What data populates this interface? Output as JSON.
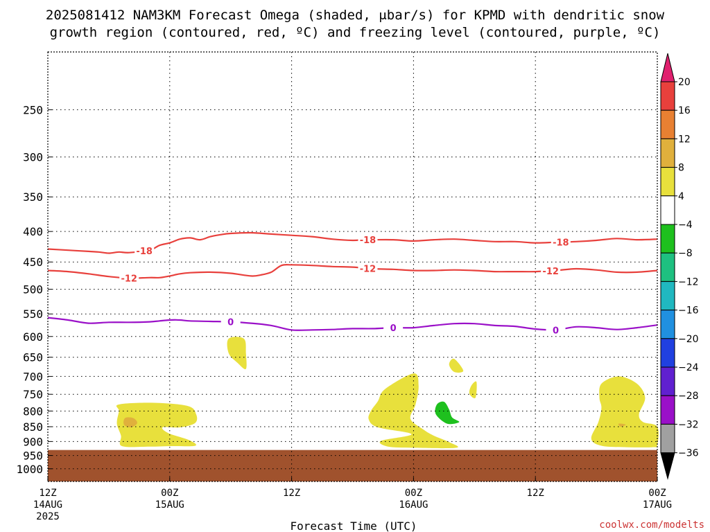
{
  "chart_data": {
    "type": "heatmap",
    "title_lines": [
      "2025081412 NAM3KM Forecast Omega (shaded, μbar/s) for KPMD with dendritic snow",
      "growth region (contoured, red, ºC) and freezing level (contoured, purple, ºC)"
    ],
    "xlabel": "Forecast Time (UTC)",
    "credit": "coolwx.com/modelts",
    "x_range_hours": [
      0,
      60
    ],
    "x_ticks": [
      {
        "hour": 0,
        "lines": [
          "12Z",
          "14AUG",
          "2025"
        ]
      },
      {
        "hour": 12,
        "lines": [
          "00Z",
          "15AUG"
        ]
      },
      {
        "hour": 24,
        "lines": [
          "12Z"
        ]
      },
      {
        "hour": 36,
        "lines": [
          "00Z",
          "16AUG"
        ]
      },
      {
        "hour": 48,
        "lines": [
          "12Z"
        ]
      },
      {
        "hour": 60,
        "lines": [
          "00Z",
          "17AUG"
        ]
      }
    ],
    "y_scale": "log-pressure",
    "y_range_hpa": [
      1050,
      200
    ],
    "y_ticks": [
      250,
      300,
      350,
      400,
      450,
      500,
      550,
      600,
      650,
      700,
      750,
      800,
      850,
      900,
      950,
      1000
    ],
    "grid": true,
    "colorbar": {
      "position": "right",
      "labels": [
        "20",
        "16",
        "12",
        "8",
        "4",
        "−4",
        "−8",
        "−12",
        "−16",
        "−20",
        "−24",
        "−28",
        "−32",
        "−36"
      ],
      "colors": [
        "#e0206e",
        "#e8403c",
        "#e88032",
        "#e0b03c",
        "#e8e03c",
        "#ffffff",
        "#1ec01e",
        "#1ec080",
        "#20b8c0",
        "#2090e0",
        "#2040e0",
        "#6020d0",
        "#9a10c8",
        "#a0a0a0",
        "#000000"
      ]
    },
    "surface_color": "#a0522d",
    "surface_hpa": 930,
    "series": [
      {
        "name": "-18",
        "color": "#e8403c",
        "label_hours": [
          9.5,
          31.5,
          50.5
        ],
        "x": [
          0,
          2,
          4,
          5,
          6,
          7,
          8,
          10,
          11,
          12,
          13,
          14,
          15,
          16,
          17,
          18,
          20,
          22,
          24,
          26,
          28,
          30,
          31,
          32,
          34,
          36,
          38,
          40,
          42,
          44,
          46,
          48,
          50,
          52,
          54,
          56,
          58,
          60
        ],
        "y": [
          428,
          430,
          432,
          433,
          435,
          433,
          434,
          430,
          422,
          418,
          412,
          410,
          413,
          408,
          405,
          403,
          402,
          404,
          406,
          408,
          412,
          414,
          413,
          413,
          413,
          415,
          413,
          412,
          414,
          416,
          416,
          418,
          417,
          416,
          414,
          411,
          413,
          412
        ]
      },
      {
        "name": "-12",
        "color": "#e8403c",
        "label_hours": [
          8,
          31.5,
          49.5
        ],
        "x": [
          0,
          2,
          4,
          6,
          8,
          10,
          11,
          12,
          13,
          14,
          16,
          18,
          20,
          21,
          22,
          23,
          24,
          26,
          28,
          30,
          32,
          34,
          36,
          38,
          40,
          42,
          44,
          46,
          48,
          50,
          52,
          54,
          56,
          58,
          60
        ],
        "y": [
          465,
          467,
          471,
          476,
          479,
          478,
          478,
          475,
          471,
          469,
          468,
          470,
          475,
          473,
          468,
          456,
          455,
          456,
          458,
          459,
          462,
          463,
          465,
          465,
          464,
          465,
          467,
          467,
          467,
          465,
          462,
          464,
          468,
          468,
          465
        ]
      },
      {
        "name": "0",
        "color": "#9a10c8",
        "label_hours": [
          18,
          34,
          50
        ],
        "x": [
          0,
          2,
          4,
          6,
          8,
          10,
          11,
          12,
          13,
          14,
          16,
          18,
          20,
          22,
          24,
          26,
          28,
          30,
          32,
          34,
          36,
          38,
          40,
          42,
          44,
          46,
          48,
          50,
          52,
          54,
          56,
          58,
          60
        ],
        "y": [
          558,
          563,
          570,
          568,
          568,
          567,
          565,
          563,
          563,
          565,
          566,
          567,
          570,
          575,
          585,
          585,
          584,
          582,
          582,
          580,
          580,
          575,
          571,
          571,
          575,
          577,
          583,
          585,
          578,
          580,
          584,
          580,
          574
        ]
      }
    ],
    "omega_regions": [
      {
        "color": "#e8e03c",
        "points": [
          [
            7.0,
            780
          ],
          [
            10.5,
            775
          ],
          [
            13.8,
            785
          ],
          [
            14.6,
            810
          ],
          [
            14.5,
            838
          ],
          [
            13.0,
            852
          ],
          [
            11.3,
            852
          ],
          [
            11.9,
            872
          ],
          [
            13.9,
            895
          ],
          [
            14.5,
            915
          ],
          [
            12.0,
            916
          ],
          [
            10.0,
            918
          ],
          [
            7.3,
            916
          ],
          [
            7.2,
            880
          ],
          [
            6.8,
            840
          ],
          [
            7.0,
            800
          ]
        ]
      },
      {
        "color": "#e0b03c",
        "points": [
          [
            7.6,
            822
          ],
          [
            8.4,
            822
          ],
          [
            8.8,
            838
          ],
          [
            8.2,
            852
          ],
          [
            7.5,
            844
          ]
        ]
      },
      {
        "color": "#e8e03c",
        "points": [
          [
            17.8,
            605
          ],
          [
            19.3,
            605
          ],
          [
            19.5,
            640
          ],
          [
            19.5,
            680
          ],
          [
            18.7,
            665
          ],
          [
            17.8,
            640
          ]
        ]
      },
      {
        "color": "#e8e03c",
        "points": [
          [
            33.2,
            735
          ],
          [
            36.0,
            692
          ],
          [
            36.5,
            725
          ],
          [
            36.2,
            780
          ],
          [
            35.7,
            825
          ],
          [
            37.0,
            860
          ],
          [
            38.0,
            880
          ],
          [
            39.5,
            902
          ],
          [
            40.2,
            922
          ],
          [
            36.0,
            922
          ],
          [
            33.5,
            918
          ],
          [
            32.8,
            898
          ],
          [
            35.8,
            875
          ],
          [
            32.5,
            852
          ],
          [
            31.6,
            827
          ],
          [
            31.8,
            800
          ],
          [
            32.5,
            770
          ]
        ]
      },
      {
        "color": "#e8e03c",
        "points": [
          [
            39.5,
            668
          ],
          [
            40.0,
            654
          ],
          [
            40.9,
            685
          ],
          [
            40.0,
            688
          ]
        ]
      },
      {
        "color": "#e8e03c",
        "points": [
          [
            41.7,
            725
          ],
          [
            42.2,
            715
          ],
          [
            42.1,
            760
          ],
          [
            41.5,
            748
          ]
        ]
      },
      {
        "color": "#1ec01e",
        "points": [
          [
            38.3,
            780
          ],
          [
            39.0,
            772
          ],
          [
            39.5,
            795
          ],
          [
            39.8,
            820
          ],
          [
            40.5,
            835
          ],
          [
            39.3,
            840
          ],
          [
            38.2,
            810
          ]
        ]
      },
      {
        "color": "#e8e03c",
        "points": [
          [
            54.5,
            720
          ],
          [
            56.2,
            700
          ],
          [
            58.0,
            720
          ],
          [
            58.8,
            760
          ],
          [
            58.2,
            810
          ],
          [
            58.6,
            835
          ],
          [
            60,
            850
          ],
          [
            60,
            912
          ],
          [
            59.5,
            920
          ],
          [
            57.0,
            920
          ],
          [
            54.5,
            915
          ],
          [
            53.5,
            890
          ],
          [
            54.2,
            835
          ],
          [
            54.5,
            790
          ],
          [
            54.3,
            760
          ]
        ]
      },
      {
        "color": "#e0b03c",
        "points": [
          [
            56.2,
            840
          ],
          [
            56.9,
            843
          ],
          [
            56.4,
            850
          ]
        ]
      }
    ]
  }
}
